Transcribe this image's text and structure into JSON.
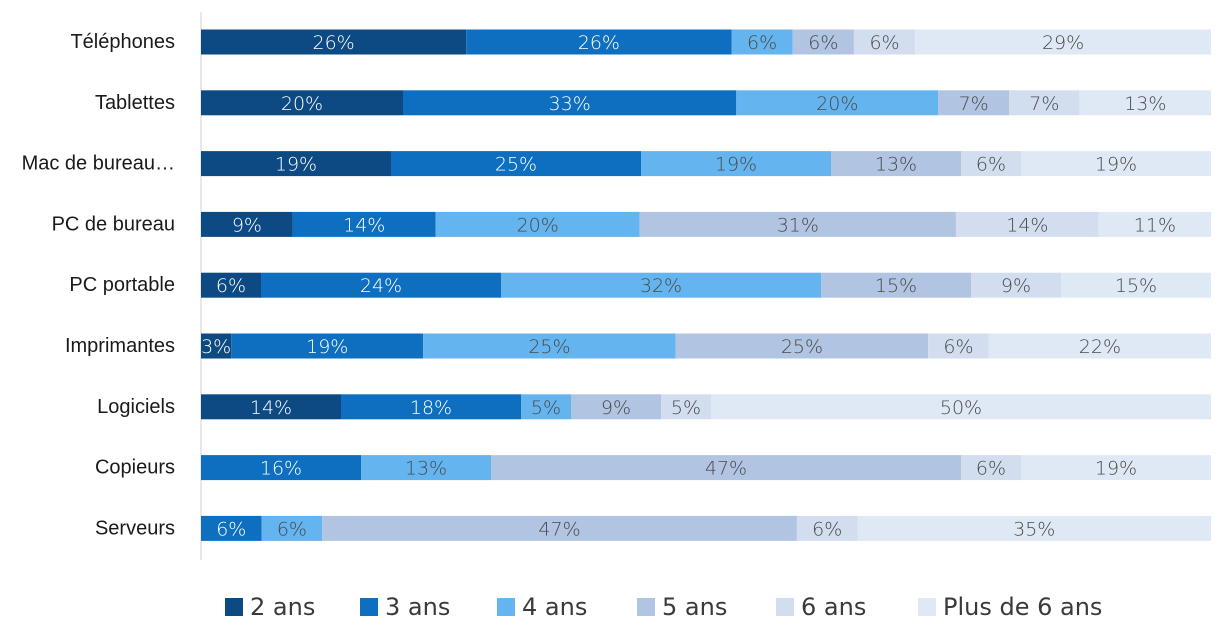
{
  "chart_data": {
    "type": "bar",
    "orientation": "horizontal",
    "stacked": "percent",
    "categories": [
      "Téléphones",
      "Tablettes",
      "Mac de bureau…",
      "PC de bureau",
      "PC portable",
      "Imprimantes",
      "Logiciels",
      "Copieurs",
      "Serveurs"
    ],
    "series": [
      {
        "name": "2 ans",
        "color": "#0d4a84",
        "values": [
          26,
          20,
          19,
          9,
          6,
          3,
          14,
          0,
          0
        ],
        "labels": [
          "26%",
          "20%",
          "19%",
          "9%",
          "6%",
          "3%",
          "14%",
          "",
          ""
        ]
      },
      {
        "name": "3 ans",
        "color": "#0e6fc0",
        "values": [
          26,
          33,
          25,
          14,
          24,
          19,
          18,
          16,
          6
        ],
        "labels": [
          "26%",
          "33%",
          "25%",
          "14%",
          "24%",
          "19%",
          "18%",
          "16%",
          "6%"
        ]
      },
      {
        "name": "4 ans",
        "color": "#64b4ef",
        "values": [
          6,
          20,
          19,
          20,
          32,
          25,
          5,
          13,
          6
        ],
        "labels": [
          "6%",
          "20%",
          "19%",
          "20%",
          "32%",
          "25%",
          "5%",
          "13%",
          "6%"
        ]
      },
      {
        "name": "5 ans",
        "color": "#b1c4e2",
        "values": [
          6,
          7,
          13,
          31,
          15,
          25,
          9,
          47,
          47
        ],
        "labels": [
          "6%",
          "7%",
          "13%",
          "31%",
          "15%",
          "25%",
          "9%",
          "47%",
          "47%"
        ]
      },
      {
        "name": "6 ans",
        "color": "#d2def0",
        "values": [
          6,
          7,
          6,
          14,
          9,
          6,
          5,
          6,
          6
        ],
        "labels": [
          "6%",
          "7%",
          "6%",
          "14%",
          "9%",
          "6%",
          "5%",
          "6%",
          "6%"
        ]
      },
      {
        "name": "Plus de 6 ans",
        "color": "#dfe9f5",
        "values": [
          29,
          13,
          19,
          11,
          15,
          22,
          50,
          19,
          35
        ],
        "labels": [
          "29%",
          "13%",
          "19%",
          "11%",
          "15%",
          "22%",
          "50%",
          "19%",
          "35%"
        ]
      }
    ],
    "label_colors": [
      "#ffffff",
      "#ffffff",
      "#4a4a4a",
      "#4a4a4a",
      "#4a4a4a",
      "#4a4a4a"
    ],
    "axis": {
      "visible": false,
      "gridlines": false
    },
    "legend_position": "bottom"
  }
}
